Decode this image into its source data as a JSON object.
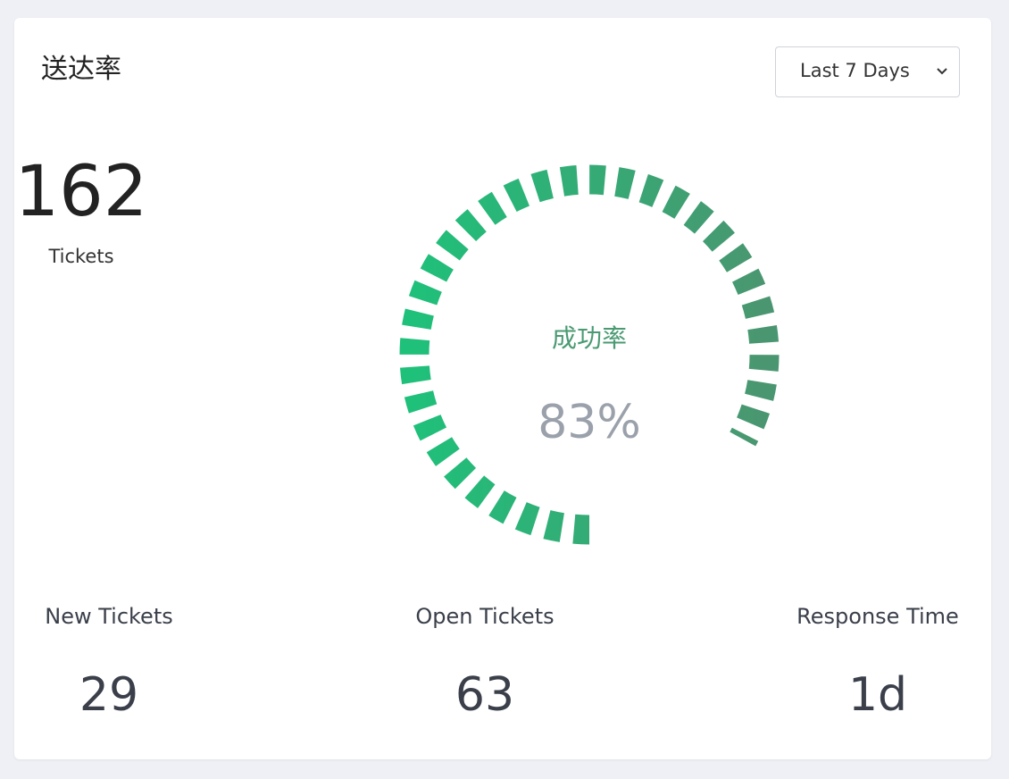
{
  "header": {
    "title": "送达率",
    "select": "Last 7 Days"
  },
  "total": {
    "value": "162",
    "label": "Tickets"
  },
  "chart_data": {
    "type": "gauge",
    "title": "成功率",
    "values": [
      83
    ],
    "value_labels": [
      "83%"
    ],
    "ylim": [
      0,
      100
    ],
    "colors": [
      "#1fc07a",
      "#4a9670"
    ]
  },
  "stats": [
    {
      "label": "New Tickets",
      "value": "29"
    },
    {
      "label": "Open Tickets",
      "value": "63"
    },
    {
      "label": "Response Time",
      "value": "1d"
    }
  ]
}
